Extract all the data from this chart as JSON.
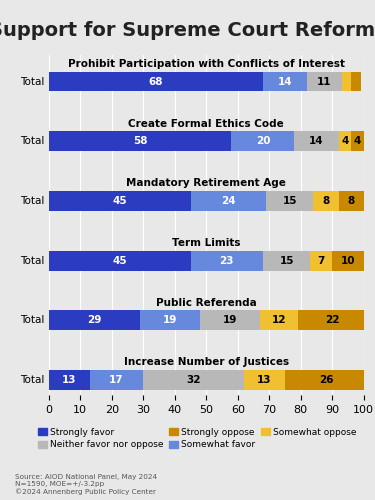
{
  "title": "Support for Supreme Court Reforms",
  "background_color": "#e8e8e8",
  "categories": [
    "Prohibit Participation with Conflicts of Interest",
    "Create Formal Ethics Code",
    "Mandatory Retirement Age",
    "Term Limits",
    "Public Referenda",
    "Increase Number of Justices"
  ],
  "segments": [
    [
      68,
      14,
      11,
      3,
      3
    ],
    [
      58,
      20,
      14,
      4,
      4
    ],
    [
      45,
      24,
      15,
      8,
      8
    ],
    [
      45,
      23,
      15,
      7,
      10
    ],
    [
      29,
      19,
      19,
      12,
      22
    ],
    [
      13,
      17,
      32,
      13,
      26
    ]
  ],
  "colors": [
    "#2b3cc0",
    "#6688dd",
    "#b8b8b8",
    "#f0c030",
    "#c88800"
  ],
  "legend_labels": [
    "Strongly favor",
    "Neither favor nor oppose",
    "Strongly oppose",
    "Somewhat favor",
    "Somewhat oppose"
  ],
  "legend_colors": [
    "#2b3cc0",
    "#b8b8b8",
    "#c88800",
    "#6688dd",
    "#f0c030"
  ],
  "xlim": [
    0,
    100
  ],
  "xticks": [
    0,
    10,
    20,
    30,
    40,
    50,
    60,
    70,
    80,
    90,
    100
  ],
  "row_label": "Total",
  "source_text": "Source: AIOD National Panel, May 2024\nN=1590, MOE=+/-3.2pp\n©2024 Annenberg Public Policy Center",
  "title_fontsize": 14,
  "tick_fontsize": 8,
  "bar_height": 0.6,
  "text_threshold": 4
}
